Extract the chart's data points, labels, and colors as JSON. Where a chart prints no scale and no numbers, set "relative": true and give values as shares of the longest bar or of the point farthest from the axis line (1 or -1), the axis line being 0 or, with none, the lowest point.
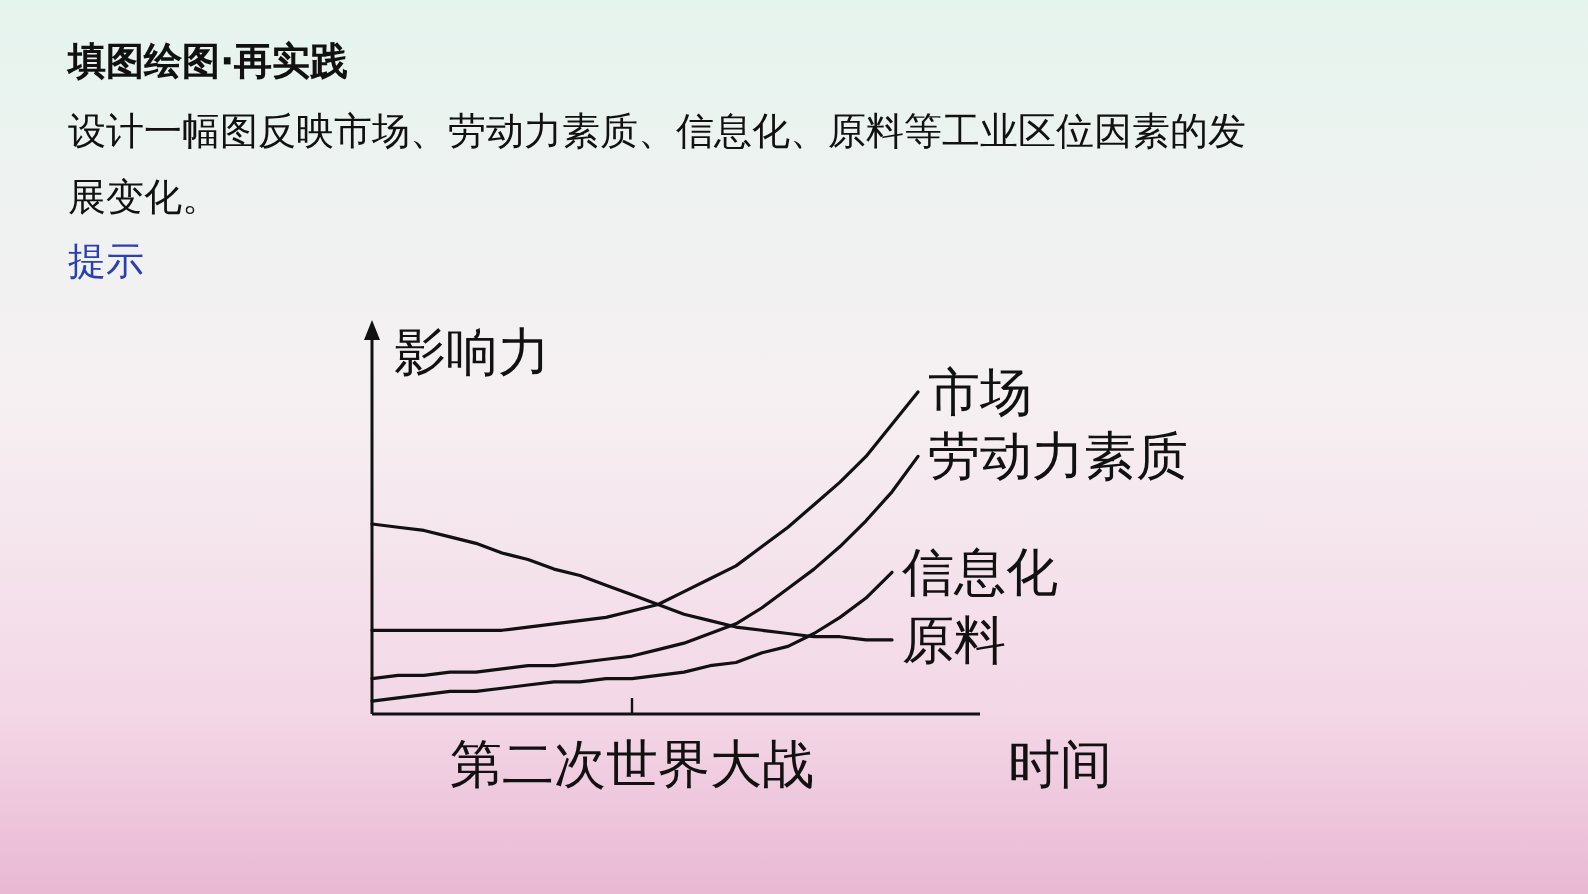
{
  "chart_data": {
    "type": "line",
    "title": "填图绘图·再实践",
    "subtitle": "设计一幅图反映市场、劳动力素质、信息化、原料等工业区位因素的发展变化。",
    "annotations": [
      "提示",
      "第二次世界大战"
    ],
    "xlabel": "时间",
    "ylabel": "影响力",
    "relative": true,
    "categories": [
      null,
      null,
      null,
      null,
      null,
      null,
      null,
      null,
      null,
      null,
      null,
      null,
      null,
      null,
      null,
      null,
      null,
      null,
      null,
      null,
      null,
      null
    ],
    "series": [
      {
        "name": "市场",
        "color": "#111111",
        "values": [
          0.26,
          0.26,
          0.26,
          0.26,
          0.26,
          0.26,
          0.27,
          0.28,
          0.29,
          0.3,
          0.32,
          0.34,
          0.38,
          0.42,
          0.46,
          0.52,
          0.58,
          0.65,
          0.72,
          0.8,
          0.9,
          1.0
        ]
      },
      {
        "name": "劳动力素质",
        "color": "#111111",
        "values": [
          0.11,
          0.12,
          0.12,
          0.13,
          0.13,
          0.14,
          0.15,
          0.15,
          0.16,
          0.17,
          0.18,
          0.2,
          0.22,
          0.25,
          0.28,
          0.33,
          0.39,
          0.45,
          0.52,
          0.6,
          0.69,
          0.8
        ]
      },
      {
        "name": "信息化",
        "color": "#111111",
        "values": [
          0.04,
          0.05,
          0.06,
          0.07,
          0.07,
          0.08,
          0.09,
          0.1,
          0.1,
          0.11,
          0.11,
          0.12,
          0.13,
          0.15,
          0.16,
          0.19,
          0.21,
          0.25,
          0.3,
          0.36,
          0.44,
          null
        ]
      },
      {
        "name": "原料",
        "color": "#111111",
        "values": [
          0.59,
          0.58,
          0.57,
          0.55,
          0.53,
          0.5,
          0.48,
          0.45,
          0.43,
          0.4,
          0.37,
          0.34,
          0.31,
          0.29,
          0.27,
          0.26,
          0.25,
          0.24,
          0.24,
          0.23,
          0.23,
          null
        ]
      }
    ]
  }
}
